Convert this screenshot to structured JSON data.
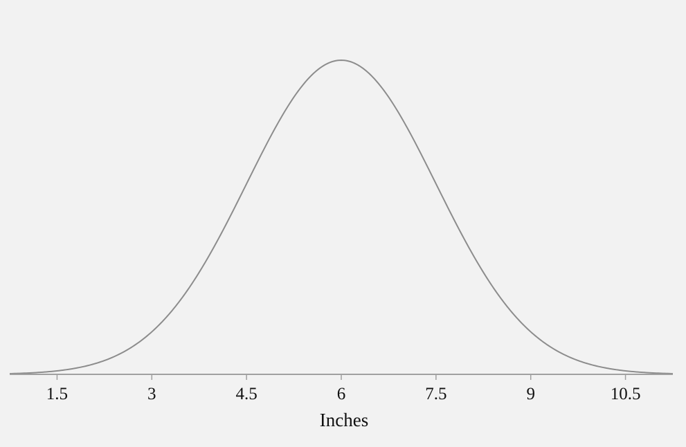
{
  "chart_data": {
    "type": "line",
    "title": "",
    "xlabel": "Inches",
    "ylabel": "",
    "distribution": "normal",
    "mean": 6,
    "sd": 1.5,
    "xlim": [
      0.75,
      11.25
    ],
    "x_ticks": [
      1.5,
      3,
      4.5,
      6,
      7.5,
      9,
      10.5
    ],
    "x_tick_labels": [
      "1.5",
      "3",
      "4.5",
      "6",
      "7.5",
      "9",
      "10.5"
    ],
    "grid": false,
    "legend": "none",
    "colors": {
      "background": "#f2f2f2",
      "curve": "#8c8c8c",
      "axis": "#a0a0a0"
    }
  }
}
